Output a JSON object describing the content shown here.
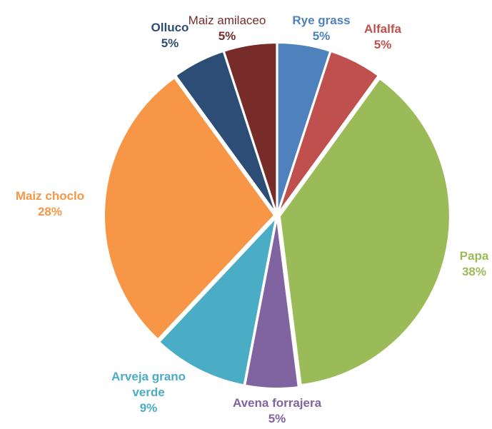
{
  "chart_data": {
    "type": "pie",
    "categories": [
      "Rye grass",
      "Alfalfa",
      "Papa",
      "Avena forrajera",
      "Arveja grano verde",
      "Maiz choclo",
      "Olluco",
      "Maiz amilaceo"
    ],
    "values": [
      5,
      5,
      38,
      5,
      9,
      28,
      5,
      5
    ],
    "value_labels": [
      "5%",
      "5%",
      "38%",
      "5%",
      "9%",
      "28%",
      "5%",
      "5%"
    ],
    "colors": [
      "#4f81bd",
      "#c0504d",
      "#9bbb59",
      "#8064a2",
      "#4bacc6",
      "#f79646",
      "#2c4d75",
      "#772c2a"
    ]
  }
}
